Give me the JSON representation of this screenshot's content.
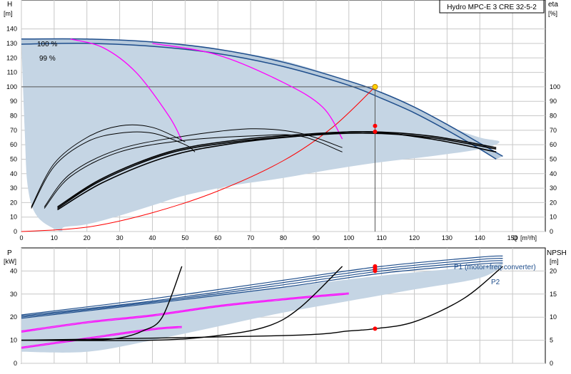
{
  "colors": {
    "frame": "#000000",
    "grid": "#c8c8c8",
    "area": "#c5d5e4",
    "pump_curve": "#1f4e8c",
    "pump_curve_fill": "#b7cadc",
    "magenta": "#ff00ff",
    "black": "#000000",
    "red": "#ff0000",
    "duty_point": "#ffd200",
    "operating_line": "#555555"
  },
  "chart_data": [
    {
      "id": "top",
      "type": "line",
      "title": "Hydro MPC-E 3 CRE 32-5-2",
      "ylabel": "H",
      "yunit": "[m]",
      "ylabel_right": "eta",
      "yunit_right": "[%]",
      "xlabel": "Q",
      "xunit": "[m³/h]",
      "xlim": [
        0,
        160
      ],
      "ylim": [
        0,
        160
      ],
      "x_ticks": [
        0,
        10,
        20,
        30,
        40,
        50,
        60,
        70,
        80,
        90,
        100,
        110,
        120,
        130,
        140,
        150
      ],
      "y_ticks": [
        0,
        10,
        20,
        30,
        40,
        50,
        60,
        70,
        80,
        90,
        100,
        110,
        120,
        130,
        140
      ],
      "y_ticks_right": [
        0,
        10,
        20,
        30,
        40,
        50,
        60,
        70,
        80,
        90,
        100
      ],
      "grid": true,
      "speed_labels": [
        "100 %",
        "99 %"
      ],
      "area_polygon": [
        [
          0,
          133
        ],
        [
          40,
          131
        ],
        [
          60,
          126
        ],
        [
          80,
          118
        ],
        [
          100,
          104
        ],
        [
          110,
          94
        ],
        [
          120,
          84
        ],
        [
          130,
          73
        ],
        [
          140,
          65
        ],
        [
          146,
          62
        ],
        [
          140,
          57
        ],
        [
          125,
          52
        ],
        [
          110,
          48
        ],
        [
          95,
          43
        ],
        [
          80,
          37
        ],
        [
          65,
          32
        ],
        [
          50,
          25
        ],
        [
          40,
          18
        ],
        [
          30,
          11
        ],
        [
          20,
          5
        ],
        [
          13,
          3
        ],
        [
          12,
          0
        ],
        [
          5,
          10
        ],
        [
          2,
          30
        ],
        [
          1,
          70
        ],
        [
          0,
          130
        ]
      ],
      "band": {
        "upper": [
          [
            0,
            133
          ],
          [
            20,
            133
          ],
          [
            40,
            131
          ],
          [
            60,
            126
          ],
          [
            80,
            117
          ],
          [
            100,
            104
          ],
          [
            110,
            96
          ],
          [
            120,
            86
          ],
          [
            130,
            74
          ],
          [
            140,
            61
          ],
          [
            147,
            52
          ]
        ],
        "lower": [
          [
            0,
            129.5
          ],
          [
            20,
            130
          ],
          [
            40,
            128
          ],
          [
            60,
            123
          ],
          [
            80,
            114
          ],
          [
            100,
            101
          ],
          [
            110,
            92
          ],
          [
            120,
            82
          ],
          [
            130,
            70
          ],
          [
            140,
            57
          ],
          [
            145,
            50
          ]
        ]
      },
      "operating_point": {
        "x": 108,
        "y": 100
      },
      "system_curve": [
        [
          0,
          0
        ],
        [
          20,
          3
        ],
        [
          40,
          13
        ],
        [
          60,
          28
        ],
        [
          80,
          49
        ],
        [
          95,
          72
        ],
        [
          108,
          100
        ]
      ],
      "magenta_series": [
        [
          [
            15,
            133
          ],
          [
            25,
            127
          ],
          [
            35,
            110
          ],
          [
            45,
            80
          ],
          [
            49,
            63
          ]
        ],
        [
          [
            40,
            130
          ],
          [
            60,
            122
          ],
          [
            80,
            103
          ],
          [
            92,
            86
          ],
          [
            98,
            64
          ]
        ]
      ],
      "efficiency_series": [
        [
          [
            3,
            16
          ],
          [
            10,
            45
          ],
          [
            20,
            62
          ],
          [
            30,
            68
          ],
          [
            40,
            68
          ],
          [
            50,
            60
          ],
          [
            53,
            55
          ]
        ],
        [
          [
            3,
            17
          ],
          [
            10,
            47
          ],
          [
            20,
            65
          ],
          [
            30,
            73
          ],
          [
            40,
            72
          ],
          [
            50,
            62
          ]
        ],
        [
          [
            7,
            16
          ],
          [
            15,
            38
          ],
          [
            30,
            55
          ],
          [
            50,
            63
          ],
          [
            70,
            66
          ],
          [
            85,
            66
          ],
          [
            98,
            55
          ]
        ],
        [
          [
            7,
            17
          ],
          [
            15,
            40
          ],
          [
            30,
            57
          ],
          [
            50,
            66
          ],
          [
            70,
            71
          ],
          [
            85,
            68
          ],
          [
            98,
            58
          ]
        ],
        [
          [
            11,
            17
          ],
          [
            25,
            37
          ],
          [
            45,
            55
          ],
          [
            65,
            63
          ],
          [
            85,
            67
          ],
          [
            105,
            69
          ],
          [
            125,
            66
          ],
          [
            145,
            58
          ]
        ],
        [
          [
            11,
            16
          ],
          [
            25,
            36
          ],
          [
            45,
            54
          ],
          [
            65,
            62
          ],
          [
            85,
            66
          ],
          [
            105,
            68
          ],
          [
            125,
            65
          ],
          [
            145,
            57
          ]
        ],
        [
          [
            11,
            15
          ],
          [
            25,
            34
          ],
          [
            45,
            52
          ],
          [
            65,
            61
          ],
          [
            85,
            66
          ],
          [
            105,
            69
          ],
          [
            125,
            64
          ],
          [
            145,
            55
          ]
        ]
      ],
      "efficiency_points": [
        {
          "x": 108,
          "y": 73
        },
        {
          "x": 108,
          "y": 69
        }
      ]
    },
    {
      "id": "bottom",
      "type": "line",
      "ylabel": "P",
      "yunit": "[kW]",
      "ylabel_right": "NPSH",
      "yunit_right": "[m]",
      "xlim": [
        0,
        160
      ],
      "ylim": [
        0,
        50
      ],
      "ylim_right": [
        0,
        25
      ],
      "y_ticks": [
        0,
        10,
        20,
        30,
        40
      ],
      "y_ticks_right": [
        0,
        5,
        10,
        15,
        20
      ],
      "grid": true,
      "series_labels": [
        "P1 (motor+freq.converter)",
        "P2"
      ],
      "power_area": [
        [
          0,
          21
        ],
        [
          40,
          27
        ],
        [
          80,
          33
        ],
        [
          110,
          38
        ],
        [
          140,
          42
        ],
        [
          147,
          43
        ],
        [
          140,
          37
        ],
        [
          120,
          32
        ],
        [
          100,
          27
        ],
        [
          80,
          22
        ],
        [
          60,
          16
        ],
        [
          40,
          10
        ],
        [
          20,
          5
        ],
        [
          0,
          5
        ]
      ],
      "blue_series": [
        [
          [
            0,
            21
          ],
          [
            40,
            28
          ],
          [
            80,
            36
          ],
          [
            110,
            42
          ],
          [
            140,
            46
          ],
          [
            147,
            46.5
          ]
        ],
        [
          [
            0,
            20.5
          ],
          [
            40,
            27
          ],
          [
            80,
            35
          ],
          [
            110,
            41
          ],
          [
            140,
            45
          ],
          [
            147,
            45.5
          ]
        ],
        [
          [
            0,
            20
          ],
          [
            40,
            26.5
          ],
          [
            80,
            34
          ],
          [
            110,
            40
          ],
          [
            140,
            44
          ],
          [
            147,
            44.5
          ]
        ],
        [
          [
            0,
            19.5
          ],
          [
            40,
            26
          ],
          [
            80,
            33
          ],
          [
            110,
            39
          ],
          [
            140,
            43
          ],
          [
            147,
            43.5
          ]
        ]
      ],
      "magenta_series": [
        [
          [
            0,
            14
          ],
          [
            20,
            18
          ],
          [
            40,
            21
          ],
          [
            60,
            25
          ],
          [
            80,
            28
          ],
          [
            100,
            30.5
          ]
        ],
        [
          [
            0,
            13.5
          ],
          [
            20,
            17.5
          ],
          [
            40,
            20.5
          ],
          [
            60,
            24.5
          ],
          [
            80,
            27.5
          ],
          [
            100,
            30
          ]
        ],
        [
          [
            0,
            7
          ],
          [
            20,
            11
          ],
          [
            40,
            15
          ],
          [
            49,
            16
          ]
        ],
        [
          [
            0,
            6.5
          ],
          [
            20,
            10.5
          ],
          [
            40,
            14.5
          ],
          [
            49,
            15.5
          ]
        ]
      ],
      "npsh_series": [
        [
          [
            0,
            5
          ],
          [
            20,
            5
          ],
          [
            30,
            5.5
          ],
          [
            37,
            7
          ],
          [
            43,
            10
          ],
          [
            49,
            21
          ]
        ],
        [
          [
            0,
            5
          ],
          [
            40,
            5
          ],
          [
            60,
            6
          ],
          [
            75,
            8
          ],
          [
            85,
            12
          ],
          [
            98,
            21
          ]
        ],
        [
          [
            0,
            5
          ],
          [
            80,
            6
          ],
          [
            100,
            7
          ],
          [
            108,
            7.5
          ],
          [
            120,
            9
          ],
          [
            135,
            14
          ],
          [
            147,
            21
          ]
        ]
      ],
      "power_points": [
        {
          "x": 108,
          "y": 42
        },
        {
          "x": 108,
          "y": 41
        },
        {
          "x": 108,
          "y": 40
        }
      ],
      "npsh_point": {
        "x": 108,
        "y": 7.5
      }
    }
  ]
}
